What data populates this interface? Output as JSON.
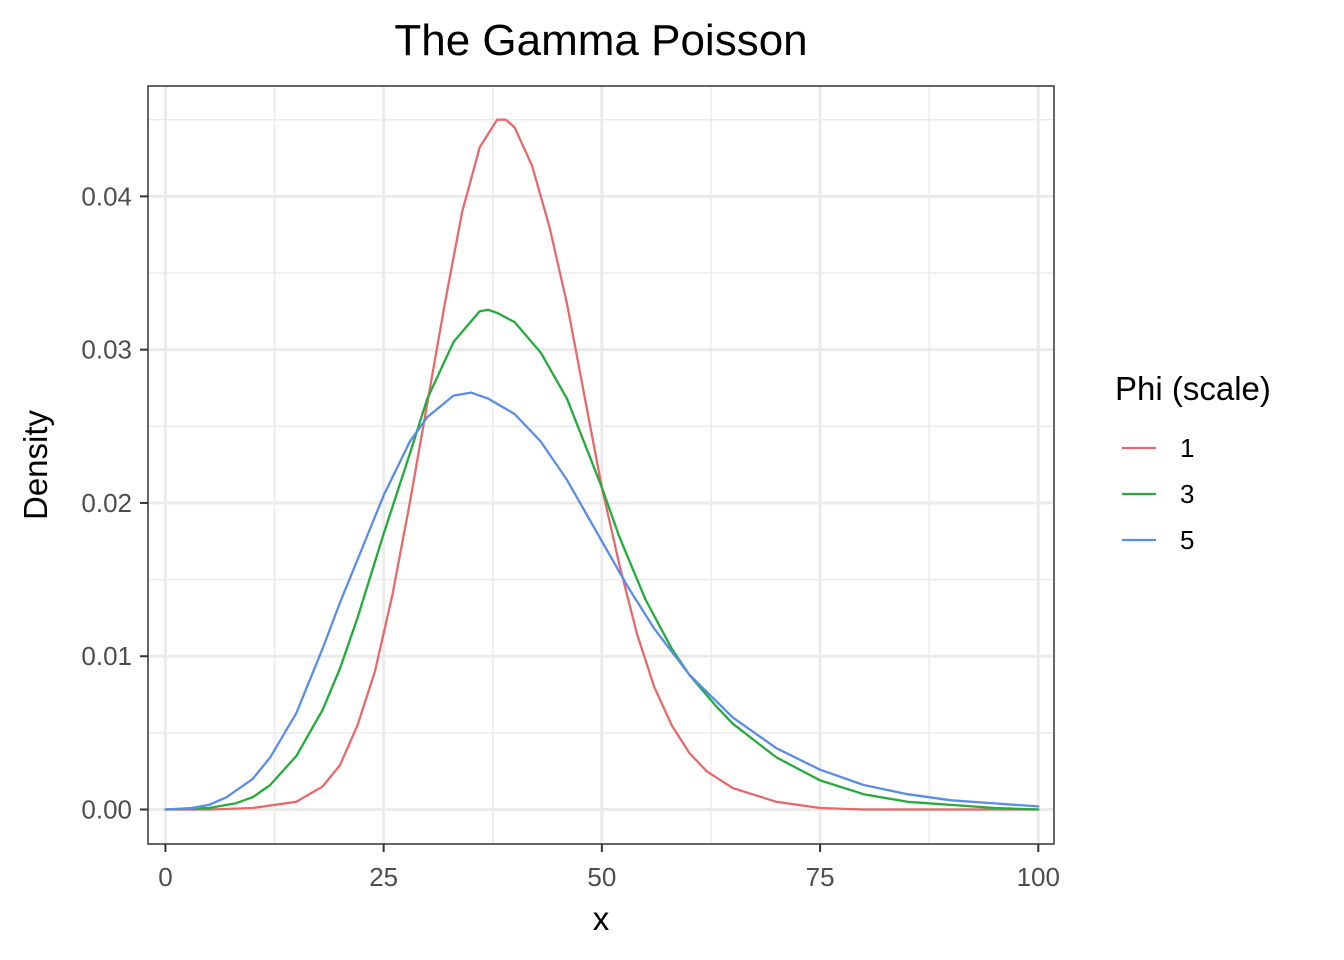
{
  "chart_data": {
    "type": "line",
    "title": "The Gamma Poisson",
    "xlabel": "x",
    "ylabel": "Density",
    "xlim": [
      -2,
      101.8
    ],
    "ylim": [
      -0.00225,
      0.0472
    ],
    "x_ticks": [
      0,
      25,
      50,
      75,
      100
    ],
    "x_tick_labels": [
      "0",
      "25",
      "50",
      "75",
      "100"
    ],
    "y_ticks": [
      0.0,
      0.01,
      0.02,
      0.03,
      0.04
    ],
    "y_tick_labels": [
      "0.00",
      "0.01",
      "0.02",
      "0.03",
      "0.04"
    ],
    "x_minor_ticks": [
      12.5,
      37.5,
      62.5,
      87.5
    ],
    "y_minor_ticks": [
      0.005,
      0.015,
      0.025,
      0.035,
      0.045
    ],
    "grid": true,
    "legend": {
      "title": "Phi (scale)",
      "position": "right"
    },
    "series": [
      {
        "name": "1",
        "color": "#e8696b",
        "x": [
          0,
          5,
          10,
          15,
          18,
          20,
          22,
          24,
          26,
          28,
          30,
          32,
          34,
          36,
          38,
          39,
          40,
          42,
          44,
          46,
          48,
          50,
          52,
          54,
          56,
          58,
          60,
          62,
          65,
          70,
          75,
          80,
          90,
          100
        ],
        "y": [
          0.0,
          0.0,
          0.0001,
          0.0005,
          0.0015,
          0.0029,
          0.0055,
          0.009,
          0.014,
          0.02,
          0.0265,
          0.033,
          0.039,
          0.0432,
          0.045,
          0.045,
          0.0445,
          0.042,
          0.038,
          0.033,
          0.027,
          0.021,
          0.016,
          0.0115,
          0.008,
          0.0055,
          0.0037,
          0.0025,
          0.0014,
          0.0005,
          0.0001,
          0.0,
          0.0,
          0.0
        ]
      },
      {
        "name": "3",
        "color": "#23ab3c",
        "x": [
          0,
          5,
          8,
          10,
          12,
          15,
          18,
          20,
          22,
          25,
          28,
          30,
          33,
          36,
          37,
          38,
          40,
          43,
          46,
          50,
          52,
          55,
          58,
          60,
          63,
          65,
          70,
          75,
          80,
          85,
          90,
          95,
          100
        ],
        "y": [
          0.0,
          0.0001,
          0.0004,
          0.0008,
          0.0016,
          0.0035,
          0.0065,
          0.0092,
          0.0125,
          0.018,
          0.0232,
          0.0268,
          0.0305,
          0.0325,
          0.0326,
          0.0324,
          0.0318,
          0.0298,
          0.0268,
          0.021,
          0.0178,
          0.0137,
          0.0105,
          0.0088,
          0.0068,
          0.0056,
          0.0034,
          0.0019,
          0.001,
          0.0005,
          0.0003,
          0.0001,
          0.0
        ]
      },
      {
        "name": "5",
        "color": "#5a8de8",
        "x": [
          0,
          3,
          5,
          7,
          10,
          12,
          15,
          18,
          20,
          22,
          25,
          28,
          30,
          33,
          35,
          37,
          40,
          43,
          46,
          50,
          53,
          56,
          60,
          65,
          70,
          75,
          80,
          85,
          90,
          95,
          100
        ],
        "y": [
          0.0,
          0.0001,
          0.0003,
          0.0008,
          0.002,
          0.0034,
          0.0063,
          0.0105,
          0.0135,
          0.0163,
          0.0205,
          0.024,
          0.0256,
          0.027,
          0.0272,
          0.0268,
          0.0258,
          0.024,
          0.0215,
          0.0175,
          0.0145,
          0.0118,
          0.0088,
          0.006,
          0.004,
          0.0026,
          0.0016,
          0.001,
          0.0006,
          0.0004,
          0.0002
        ]
      }
    ]
  }
}
